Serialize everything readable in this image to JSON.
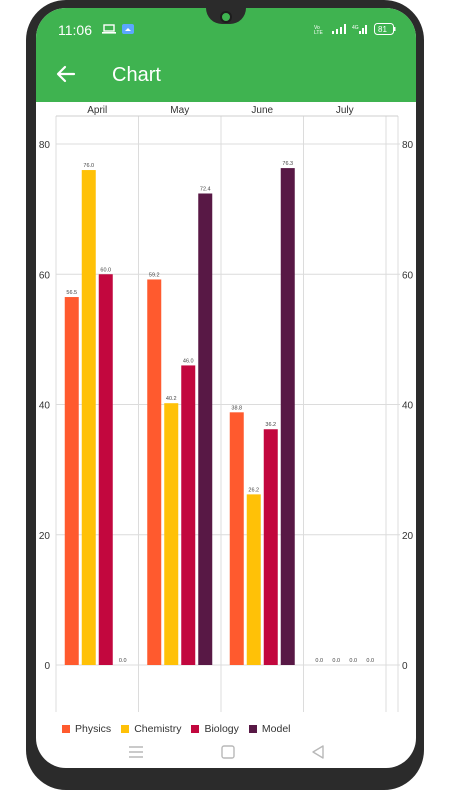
{
  "status_bar": {
    "time": "11:06",
    "battery": "81",
    "icons": [
      "laptop-icon",
      "cloud-icon",
      "volte-icon",
      "signal-icon",
      "4g-icon",
      "battery-icon"
    ]
  },
  "app_bar": {
    "title": "Chart",
    "back_icon": "arrow-left-icon",
    "color": "#3fb350"
  },
  "chart_data": {
    "type": "bar",
    "categories": [
      "April",
      "May",
      "June",
      "July"
    ],
    "series": [
      {
        "name": "Physics",
        "color": "#ff5a2e",
        "values": [
          56.5,
          59.2,
          38.8,
          0.0
        ]
      },
      {
        "name": "Chemistry",
        "color": "#ffc107",
        "values": [
          76.0,
          40.2,
          26.2,
          0.0
        ]
      },
      {
        "name": "Biology",
        "color": "#c2073e",
        "values": [
          60.0,
          46.0,
          36.2,
          0.0
        ]
      },
      {
        "name": "Model",
        "color": "#581845",
        "values": [
          0.0,
          72.4,
          76.3,
          0.0
        ]
      }
    ],
    "data_labels": [
      [
        "56.5",
        "59.2",
        "38.8",
        "0.0"
      ],
      [
        "76.0",
        "40.2",
        "26.2",
        "0.0"
      ],
      [
        "60.0",
        "46.0",
        "36.2",
        "0.0"
      ],
      [
        "0.0",
        "72.4",
        "76.3",
        "0.0"
      ]
    ],
    "y_ticks": [
      "0",
      "20",
      "40",
      "60",
      "80"
    ],
    "ylim": [
      0,
      80
    ],
    "grid": true,
    "legend_position": "bottom-left",
    "category_axis_position": "top",
    "value_axes": "left and right"
  },
  "nav_bar": {
    "icons": [
      "menu-icon",
      "home-square-icon",
      "back-triangle-icon"
    ]
  }
}
